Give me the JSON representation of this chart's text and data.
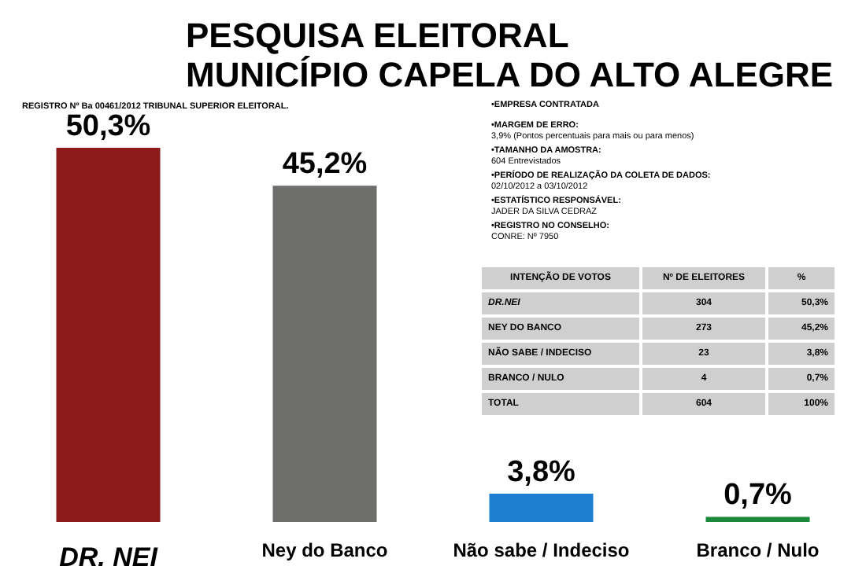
{
  "chart_data": {
    "type": "bar",
    "title": "PESQUISA ELEITORAL",
    "subtitle": "MUNICÍPIO CAPELA DO ALTO ALEGRE",
    "categories": [
      "DR. NEI",
      "Ney do Banco",
      "Não sabe / Indeciso",
      "Branco / Nulo"
    ],
    "values": [
      50.3,
      45.2,
      3.8,
      0.7
    ],
    "value_labels": [
      "50,3%",
      "45,2%",
      "3,8%",
      "0,7%"
    ],
    "colors": [
      "#8e1b1b",
      "#6e6e6c",
      "#1e7fd0",
      "#1c8a3c"
    ],
    "annotations": [
      "REGISTRO Nº Ba 00461/2012 TRIBUNAL SUPERIOR ELEITORAL.",
      "•EMPRESA CONTRATADA",
      "•MARGEM DE ERRO:",
      "3,9% (Pontos percentuais para mais ou para menos)",
      "•TAMANHO DA AMOSTRA:",
      "604 Entrevistados",
      "•PERÍODO DE REALIZAÇÃO DA COLETA DE DADOS:",
      "02/10/2012 a 03/10/2012",
      "•ESTATÍSTICO RESPONSÁVEL:",
      "JADER DA SILVA CEDRAZ",
      "•REGISTRO NO CONSELHO:",
      "CONRE: Nº 7950",
      "INTENÇÃO DE VOTOS",
      "Nº DE ELEITORES",
      "%",
      "DR.NEI",
      "304",
      "50,3%",
      "NEY DO BANCO",
      "273",
      "45,2%",
      "NÃO SABE / INDECISO",
      "23",
      "3,8%",
      "BRANCO / NULO",
      "4",
      "0,7%",
      "TOTAL",
      "604",
      "100%"
    ]
  }
}
